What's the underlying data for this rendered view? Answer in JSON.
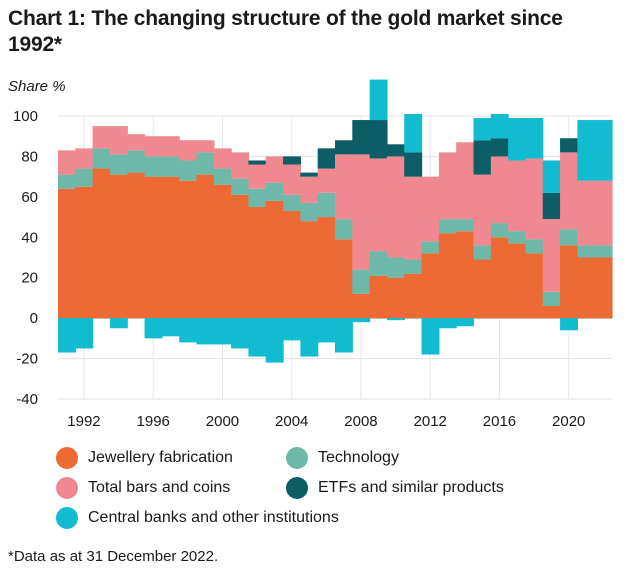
{
  "title": "Chart 1: The changing structure of the gold market since 1992*",
  "footnote": "*Data as at 31 December 2022.",
  "chart_data": {
    "type": "area",
    "subtype": "stacked-step",
    "title": "Chart 1: The changing structure of the gold market since 1992*",
    "ylabel": "Share %",
    "xlabel": "",
    "ylim": [
      -40,
      100
    ],
    "yticks": [
      -40,
      -20,
      0,
      20,
      40,
      60,
      80,
      100
    ],
    "xticks": [
      1992,
      1996,
      2000,
      2004,
      2008,
      2012,
      2016,
      2020
    ],
    "grid": true,
    "legend_position": "bottom",
    "x": [
      1991,
      1992,
      1993,
      1994,
      1995,
      1996,
      1997,
      1998,
      1999,
      2000,
      2001,
      2002,
      2003,
      2004,
      2005,
      2006,
      2007,
      2008,
      2009,
      2010,
      2011,
      2012,
      2013,
      2014,
      2015,
      2016,
      2017,
      2018,
      2019,
      2020,
      2021,
      2022
    ],
    "series": [
      {
        "name": "Jewellery fabrication",
        "color": "#ee6a35",
        "values": [
          64,
          65,
          74,
          71,
          72,
          70,
          70,
          68,
          71,
          66,
          61,
          55,
          58,
          53,
          48,
          50,
          39,
          12,
          21,
          20,
          22,
          32,
          42,
          43,
          29,
          40,
          37,
          32,
          6,
          36,
          30,
          30
        ]
      },
      {
        "name": "Technology",
        "color": "#6db8a8",
        "values": [
          7,
          9,
          10,
          10,
          11,
          10,
          10,
          10,
          11,
          8,
          8,
          9,
          9,
          8,
          9,
          12,
          10,
          12,
          12,
          10,
          7,
          6,
          7,
          6,
          7,
          7,
          6,
          7,
          7,
          8,
          6,
          6
        ]
      },
      {
        "name": "Total bars and coins",
        "color": "#f08891",
        "values": [
          12,
          10,
          11,
          14,
          8,
          10,
          10,
          10,
          6,
          10,
          13,
          12,
          13,
          15,
          13,
          12,
          32,
          57,
          46,
          50,
          41,
          32,
          33,
          38,
          35,
          33,
          35,
          40,
          36,
          38,
          32,
          32
        ]
      },
      {
        "name": "ETFs and similar products",
        "color": "#0b5e66",
        "values": [
          0,
          0,
          0,
          0,
          0,
          0,
          0,
          0,
          0,
          0,
          0,
          2,
          0,
          4,
          2,
          10,
          7,
          17,
          19,
          6,
          12,
          0,
          0,
          0,
          17,
          9,
          0,
          0,
          13,
          7,
          0,
          0
        ]
      },
      {
        "name": "Central banks and other institutions",
        "color": "#12bcd0",
        "values": [
          -17,
          -15,
          0,
          -5,
          0,
          -10,
          -9,
          -12,
          -13,
          -13,
          -15,
          -19,
          -22,
          -11,
          -19,
          -12,
          -17,
          -2,
          20,
          -1,
          19,
          -18,
          -5,
          -4,
          11,
          12,
          21,
          20,
          16,
          -6,
          30,
          30
        ]
      }
    ]
  },
  "legend": [
    {
      "label": "Jewellery fabrication",
      "color": "#ee6a35"
    },
    {
      "label": "Technology",
      "color": "#6db8a8"
    },
    {
      "label": "Total bars and coins",
      "color": "#f08891"
    },
    {
      "label": "ETFs and similar products",
      "color": "#0b5e66"
    },
    {
      "label": "Central banks and other institutions",
      "color": "#12bcd0"
    }
  ]
}
